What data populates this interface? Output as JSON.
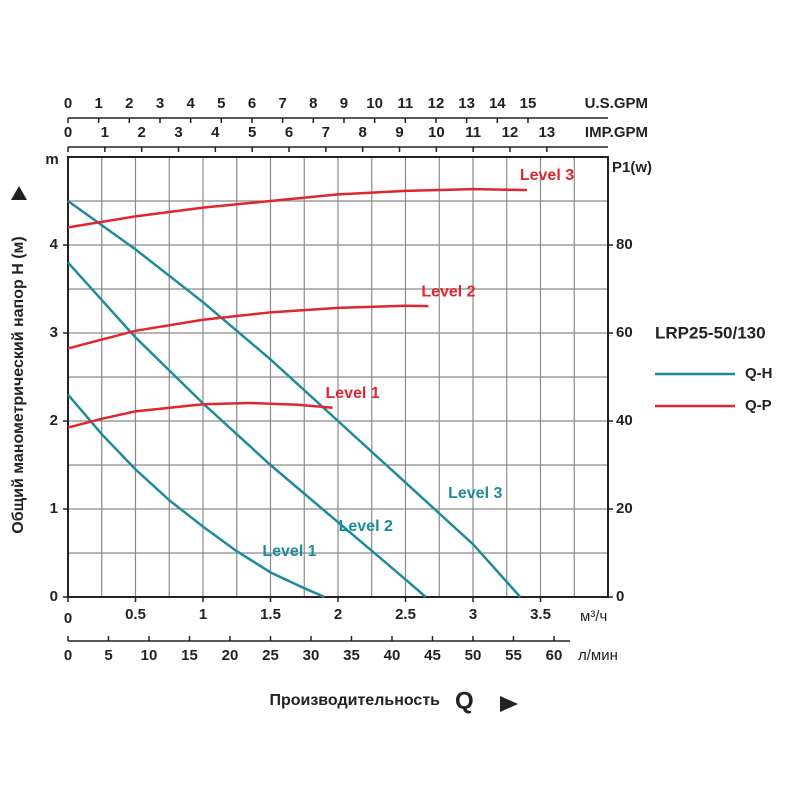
{
  "chart_data": {
    "type": "line",
    "y_label": "Общий манометрический напор H (м)",
    "y_unit": "m",
    "y2_unit": "P1(w)",
    "x_label": "Производительность",
    "x_symbol": "Q",
    "x_unit": "м³/ч",
    "xlim": [
      0,
      4
    ],
    "xticks": [
      0,
      0.5,
      1,
      1.5,
      2,
      2.5,
      3,
      3.5
    ],
    "xgrid": [
      0.25,
      0.5,
      0.75,
      1,
      1.25,
      1.5,
      1.75,
      2,
      2.25,
      2.5,
      2.75,
      3,
      3.25,
      3.5,
      3.75
    ],
    "ylim": [
      0,
      5
    ],
    "yticks": [
      0,
      1,
      2,
      3,
      4
    ],
    "ygrid": [
      0.5,
      1,
      1.5,
      2,
      2.5,
      3,
      3.5,
      4,
      4.5
    ],
    "y2lim": [
      0,
      100
    ],
    "y2ticks": [
      0,
      20,
      40,
      60,
      80
    ],
    "grid": true,
    "extra_axes": [
      {
        "label": "U.S.GPM",
        "position": "top",
        "lim": [
          0,
          17.61
        ],
        "ticks": [
          0,
          1,
          2,
          3,
          4,
          5,
          6,
          7,
          8,
          9,
          10,
          11,
          12,
          13,
          14,
          15
        ]
      },
      {
        "label": "IMP.GPM",
        "position": "top",
        "lim": [
          0,
          14.66
        ],
        "ticks": [
          0,
          1,
          2,
          3,
          4,
          5,
          6,
          7,
          8,
          9,
          10,
          11,
          12,
          13
        ]
      },
      {
        "label": "л/мин",
        "position": "bottom",
        "lim": [
          0,
          66.67
        ],
        "ticks": [
          0,
          5,
          10,
          15,
          20,
          25,
          30,
          35,
          40,
          45,
          50,
          55,
          60
        ]
      }
    ],
    "legend_title": "LRP25-50/130",
    "groups": [
      {
        "name": "Q-H",
        "color": "#1f8a9c",
        "series": [
          {
            "name": "Level 1",
            "x": [
              0,
              0.25,
              0.5,
              0.75,
              1,
              1.25,
              1.5,
              1.75,
              1.9
            ],
            "values": [
              2.3,
              1.85,
              1.45,
              1.1,
              0.8,
              0.52,
              0.28,
              0.1,
              0
            ]
          },
          {
            "name": "Level 2",
            "x": [
              0,
              0.5,
              1,
              1.5,
              2,
              2.5,
              2.65
            ],
            "values": [
              3.8,
              2.95,
              2.2,
              1.5,
              0.85,
              0.2,
              0
            ]
          },
          {
            "name": "Level 3",
            "x": [
              0,
              0.5,
              1,
              1.5,
              2,
              2.5,
              3,
              3.35
            ],
            "values": [
              4.5,
              3.95,
              3.35,
              2.7,
              2.0,
              1.3,
              0.6,
              0
            ]
          }
        ]
      },
      {
        "name": "Q-P",
        "color": "#e0262f",
        "axis": "y2",
        "series": [
          {
            "name": "Level 1",
            "x": [
              0,
              0.25,
              0.5,
              1,
              1.35,
              1.7,
              1.96
            ],
            "values": [
              38.5,
              40.5,
              42.2,
              43.8,
              44.1,
              43.7,
              43
            ]
          },
          {
            "name": "Level 2",
            "x": [
              0,
              0.5,
              1,
              1.5,
              2,
              2.5,
              2.67
            ],
            "values": [
              56.5,
              60.5,
              63,
              64.7,
              65.7,
              66.2,
              66.1
            ]
          },
          {
            "name": "Level 3",
            "x": [
              0,
              0.5,
              1,
              1.5,
              2,
              2.5,
              3,
              3.4
            ],
            "values": [
              84,
              86.5,
              88.5,
              90,
              91.5,
              92.3,
              92.7,
              92.5
            ]
          }
        ]
      }
    ]
  }
}
